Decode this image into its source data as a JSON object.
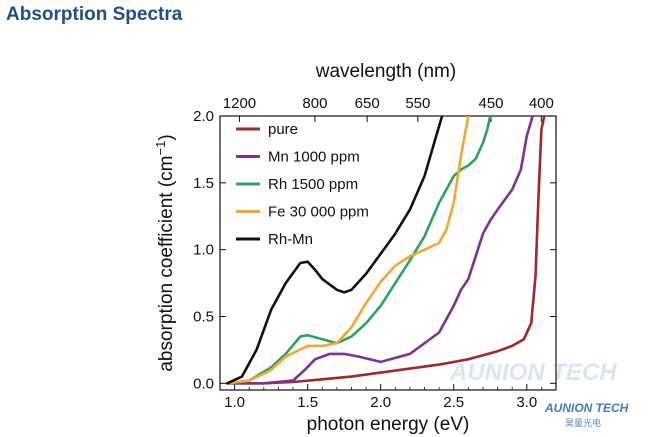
{
  "page": {
    "heading": "Absorption Spectra"
  },
  "colors": {
    "heading": "#1f4e8c",
    "watermark": "#2f6db5"
  },
  "watermark": {
    "text": "AUNION TECH",
    "sub": "昊量光电"
  },
  "chart_data": {
    "type": "line",
    "xlabel": "photon energy (eV)",
    "ylabel": "absorption coefficient (cm",
    "ylabel_sup": "−1",
    "ylabel_end": ")",
    "top_axis_label": "wavelength (nm)",
    "xlim": [
      0.9,
      3.2
    ],
    "ylim": [
      -0.05,
      2.0
    ],
    "x_ticks": [
      1.0,
      1.5,
      2.0,
      2.5,
      3.0
    ],
    "x_tick_labels": [
      "1.0",
      "1.5",
      "2.0",
      "2.5",
      "3.0"
    ],
    "y_ticks": [
      0.0,
      0.5,
      1.0,
      1.5,
      2.0
    ],
    "y_tick_labels": [
      "0.0",
      "0.5",
      "1.0",
      "1.5",
      "2.0"
    ],
    "top_ticks_nm": [
      1200,
      800,
      650,
      550,
      450,
      400
    ],
    "top_tick_labels": [
      "1200",
      "800",
      "650",
      "550",
      "450",
      "400"
    ],
    "grid": false,
    "legend_position": "top-left",
    "series": [
      {
        "name": "pure",
        "color": "#9e2a2b",
        "x": [
          0.95,
          1.2,
          1.4,
          1.6,
          1.8,
          2.0,
          2.2,
          2.4,
          2.6,
          2.8,
          2.9,
          2.98,
          3.03,
          3.06,
          3.08,
          3.1,
          3.12
        ],
        "y": [
          0.0,
          0.0,
          0.01,
          0.03,
          0.05,
          0.08,
          0.11,
          0.14,
          0.18,
          0.24,
          0.28,
          0.33,
          0.45,
          0.8,
          1.4,
          1.9,
          2.0
        ]
      },
      {
        "name": "Mn 1000 ppm",
        "color": "#7b3294",
        "x": [
          0.95,
          1.2,
          1.4,
          1.48,
          1.55,
          1.65,
          1.75,
          1.85,
          2.0,
          2.2,
          2.4,
          2.5,
          2.55,
          2.6,
          2.65,
          2.7,
          2.75,
          2.8,
          2.9,
          2.96,
          3.0,
          3.04
        ],
        "y": [
          0.0,
          0.0,
          0.02,
          0.1,
          0.18,
          0.22,
          0.22,
          0.2,
          0.16,
          0.22,
          0.38,
          0.58,
          0.7,
          0.78,
          0.95,
          1.12,
          1.22,
          1.3,
          1.45,
          1.6,
          1.85,
          2.0
        ]
      },
      {
        "name": "Rh 1500 ppm",
        "color": "#2ca25f",
        "x": [
          0.95,
          1.1,
          1.25,
          1.35,
          1.45,
          1.5,
          1.6,
          1.7,
          1.8,
          1.9,
          2.0,
          2.1,
          2.2,
          2.3,
          2.4,
          2.5,
          2.55,
          2.6,
          2.65,
          2.7,
          2.73,
          2.75
        ],
        "y": [
          0.0,
          0.02,
          0.12,
          0.22,
          0.35,
          0.36,
          0.33,
          0.3,
          0.35,
          0.45,
          0.58,
          0.75,
          0.92,
          1.1,
          1.35,
          1.55,
          1.6,
          1.63,
          1.68,
          1.8,
          1.9,
          2.0
        ]
      },
      {
        "name": "Fe 30 000 ppm",
        "color": "#f0a830",
        "x": [
          0.95,
          1.1,
          1.25,
          1.35,
          1.5,
          1.6,
          1.7,
          1.8,
          1.9,
          2.0,
          2.1,
          2.2,
          2.3,
          2.4,
          2.45,
          2.5,
          2.55,
          2.6
        ],
        "y": [
          0.0,
          0.02,
          0.1,
          0.2,
          0.28,
          0.28,
          0.3,
          0.42,
          0.6,
          0.76,
          0.88,
          0.95,
          1.0,
          1.05,
          1.15,
          1.35,
          1.7,
          2.0
        ]
      },
      {
        "name": "Rh-Mn",
        "color": "#111111",
        "x": [
          0.95,
          1.05,
          1.15,
          1.25,
          1.35,
          1.45,
          1.5,
          1.55,
          1.6,
          1.7,
          1.75,
          1.8,
          1.9,
          2.0,
          2.1,
          2.2,
          2.3,
          2.38,
          2.42
        ],
        "y": [
          0.0,
          0.05,
          0.25,
          0.55,
          0.75,
          0.9,
          0.91,
          0.85,
          0.78,
          0.7,
          0.68,
          0.7,
          0.82,
          0.97,
          1.12,
          1.3,
          1.55,
          1.85,
          2.0
        ]
      }
    ]
  }
}
